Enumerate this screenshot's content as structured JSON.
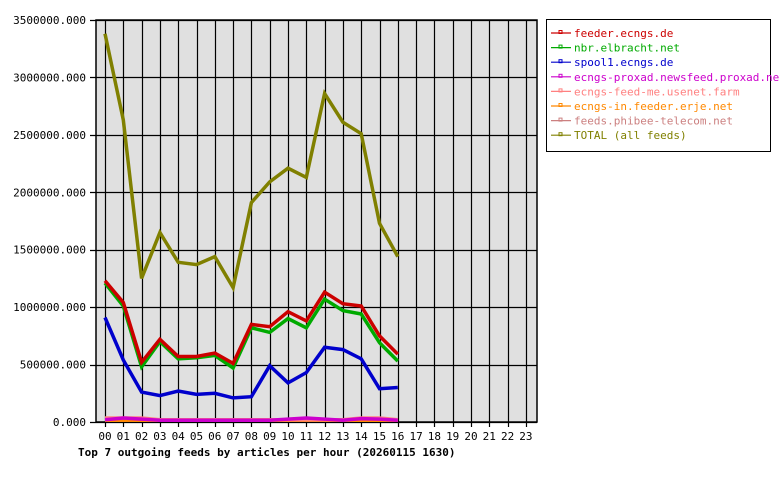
{
  "chart_data": {
    "type": "line",
    "title": "Top 7 outgoing feeds by articles per hour (20260115 1630)",
    "xlabel": "",
    "ylabel": "",
    "ylim": [
      0,
      3500000
    ],
    "yticks": [
      "0.000",
      "500000.000",
      "1000000.000",
      "1500000.000",
      "2000000.000",
      "2500000.000",
      "3000000.000",
      "3500000.000"
    ],
    "yticks_values": [
      0,
      500000,
      1000000,
      1500000,
      2000000,
      2500000,
      3000000,
      3500000
    ],
    "categories": [
      "00",
      "01",
      "02",
      "03",
      "04",
      "05",
      "06",
      "07",
      "08",
      "09",
      "10",
      "11",
      "12",
      "13",
      "14",
      "15",
      "16",
      "17",
      "18",
      "19",
      "20",
      "21",
      "22",
      "23"
    ],
    "grid": true,
    "legend_position": "right",
    "series": [
      {
        "name": "feeder.ecngs.de",
        "color": "#cc0000",
        "values": [
          1230000,
          1040000,
          520000,
          720000,
          570000,
          570000,
          600000,
          510000,
          850000,
          830000,
          960000,
          880000,
          1130000,
          1030000,
          1010000,
          750000,
          590000
        ]
      },
      {
        "name": "nbr.elbracht.net",
        "color": "#00aa00",
        "values": [
          1210000,
          1010000,
          480000,
          700000,
          550000,
          560000,
          580000,
          470000,
          820000,
          780000,
          900000,
          820000,
          1070000,
          970000,
          940000,
          690000,
          530000
        ]
      },
      {
        "name": "spool1.ecngs.de",
        "color": "#0000cc",
        "values": [
          910000,
          540000,
          260000,
          230000,
          270000,
          240000,
          250000,
          210000,
          220000,
          490000,
          340000,
          430000,
          650000,
          630000,
          550000,
          290000,
          300000
        ]
      },
      {
        "name": "ecngs-proxad.newsfeed.proxad.net",
        "color": "#cc00cc",
        "values": [
          20000,
          35000,
          25000,
          15000,
          15000,
          15000,
          15000,
          15000,
          15000,
          15000,
          25000,
          35000,
          25000,
          15000,
          30000,
          25000,
          15000
        ]
      },
      {
        "name": "ecngs-feed-me.usenet.farm",
        "color": "#ff8080",
        "values": [
          35000,
          35000,
          35000,
          20000,
          20000,
          20000,
          20000,
          20000,
          20000,
          20000,
          20000,
          20000,
          20000,
          20000,
          35000,
          35000,
          20000
        ]
      },
      {
        "name": "ecngs-in.feeder.erje.net",
        "color": "#ff8800",
        "values": [
          15000,
          15000,
          15000,
          15000,
          15000,
          15000,
          15000,
          15000,
          15000,
          15000,
          15000,
          15000,
          15000,
          15000,
          15000,
          15000,
          15000
        ]
      },
      {
        "name": "feeds.phibee-telecom.net",
        "color": "#cc8080",
        "values": [
          15000,
          15000,
          15000,
          15000,
          15000,
          15000,
          15000,
          15000,
          15000,
          15000,
          15000,
          15000,
          15000,
          15000,
          15000,
          15000,
          15000
        ]
      },
      {
        "name": "TOTAL (all feeds)",
        "color": "#808000",
        "values": [
          3380000,
          2630000,
          1250000,
          1650000,
          1390000,
          1370000,
          1440000,
          1170000,
          1910000,
          2090000,
          2210000,
          2130000,
          2860000,
          2610000,
          2510000,
          1730000,
          1440000
        ]
      }
    ]
  },
  "plot": {
    "background": "#e0e0e0",
    "grid_color": "#000000"
  }
}
